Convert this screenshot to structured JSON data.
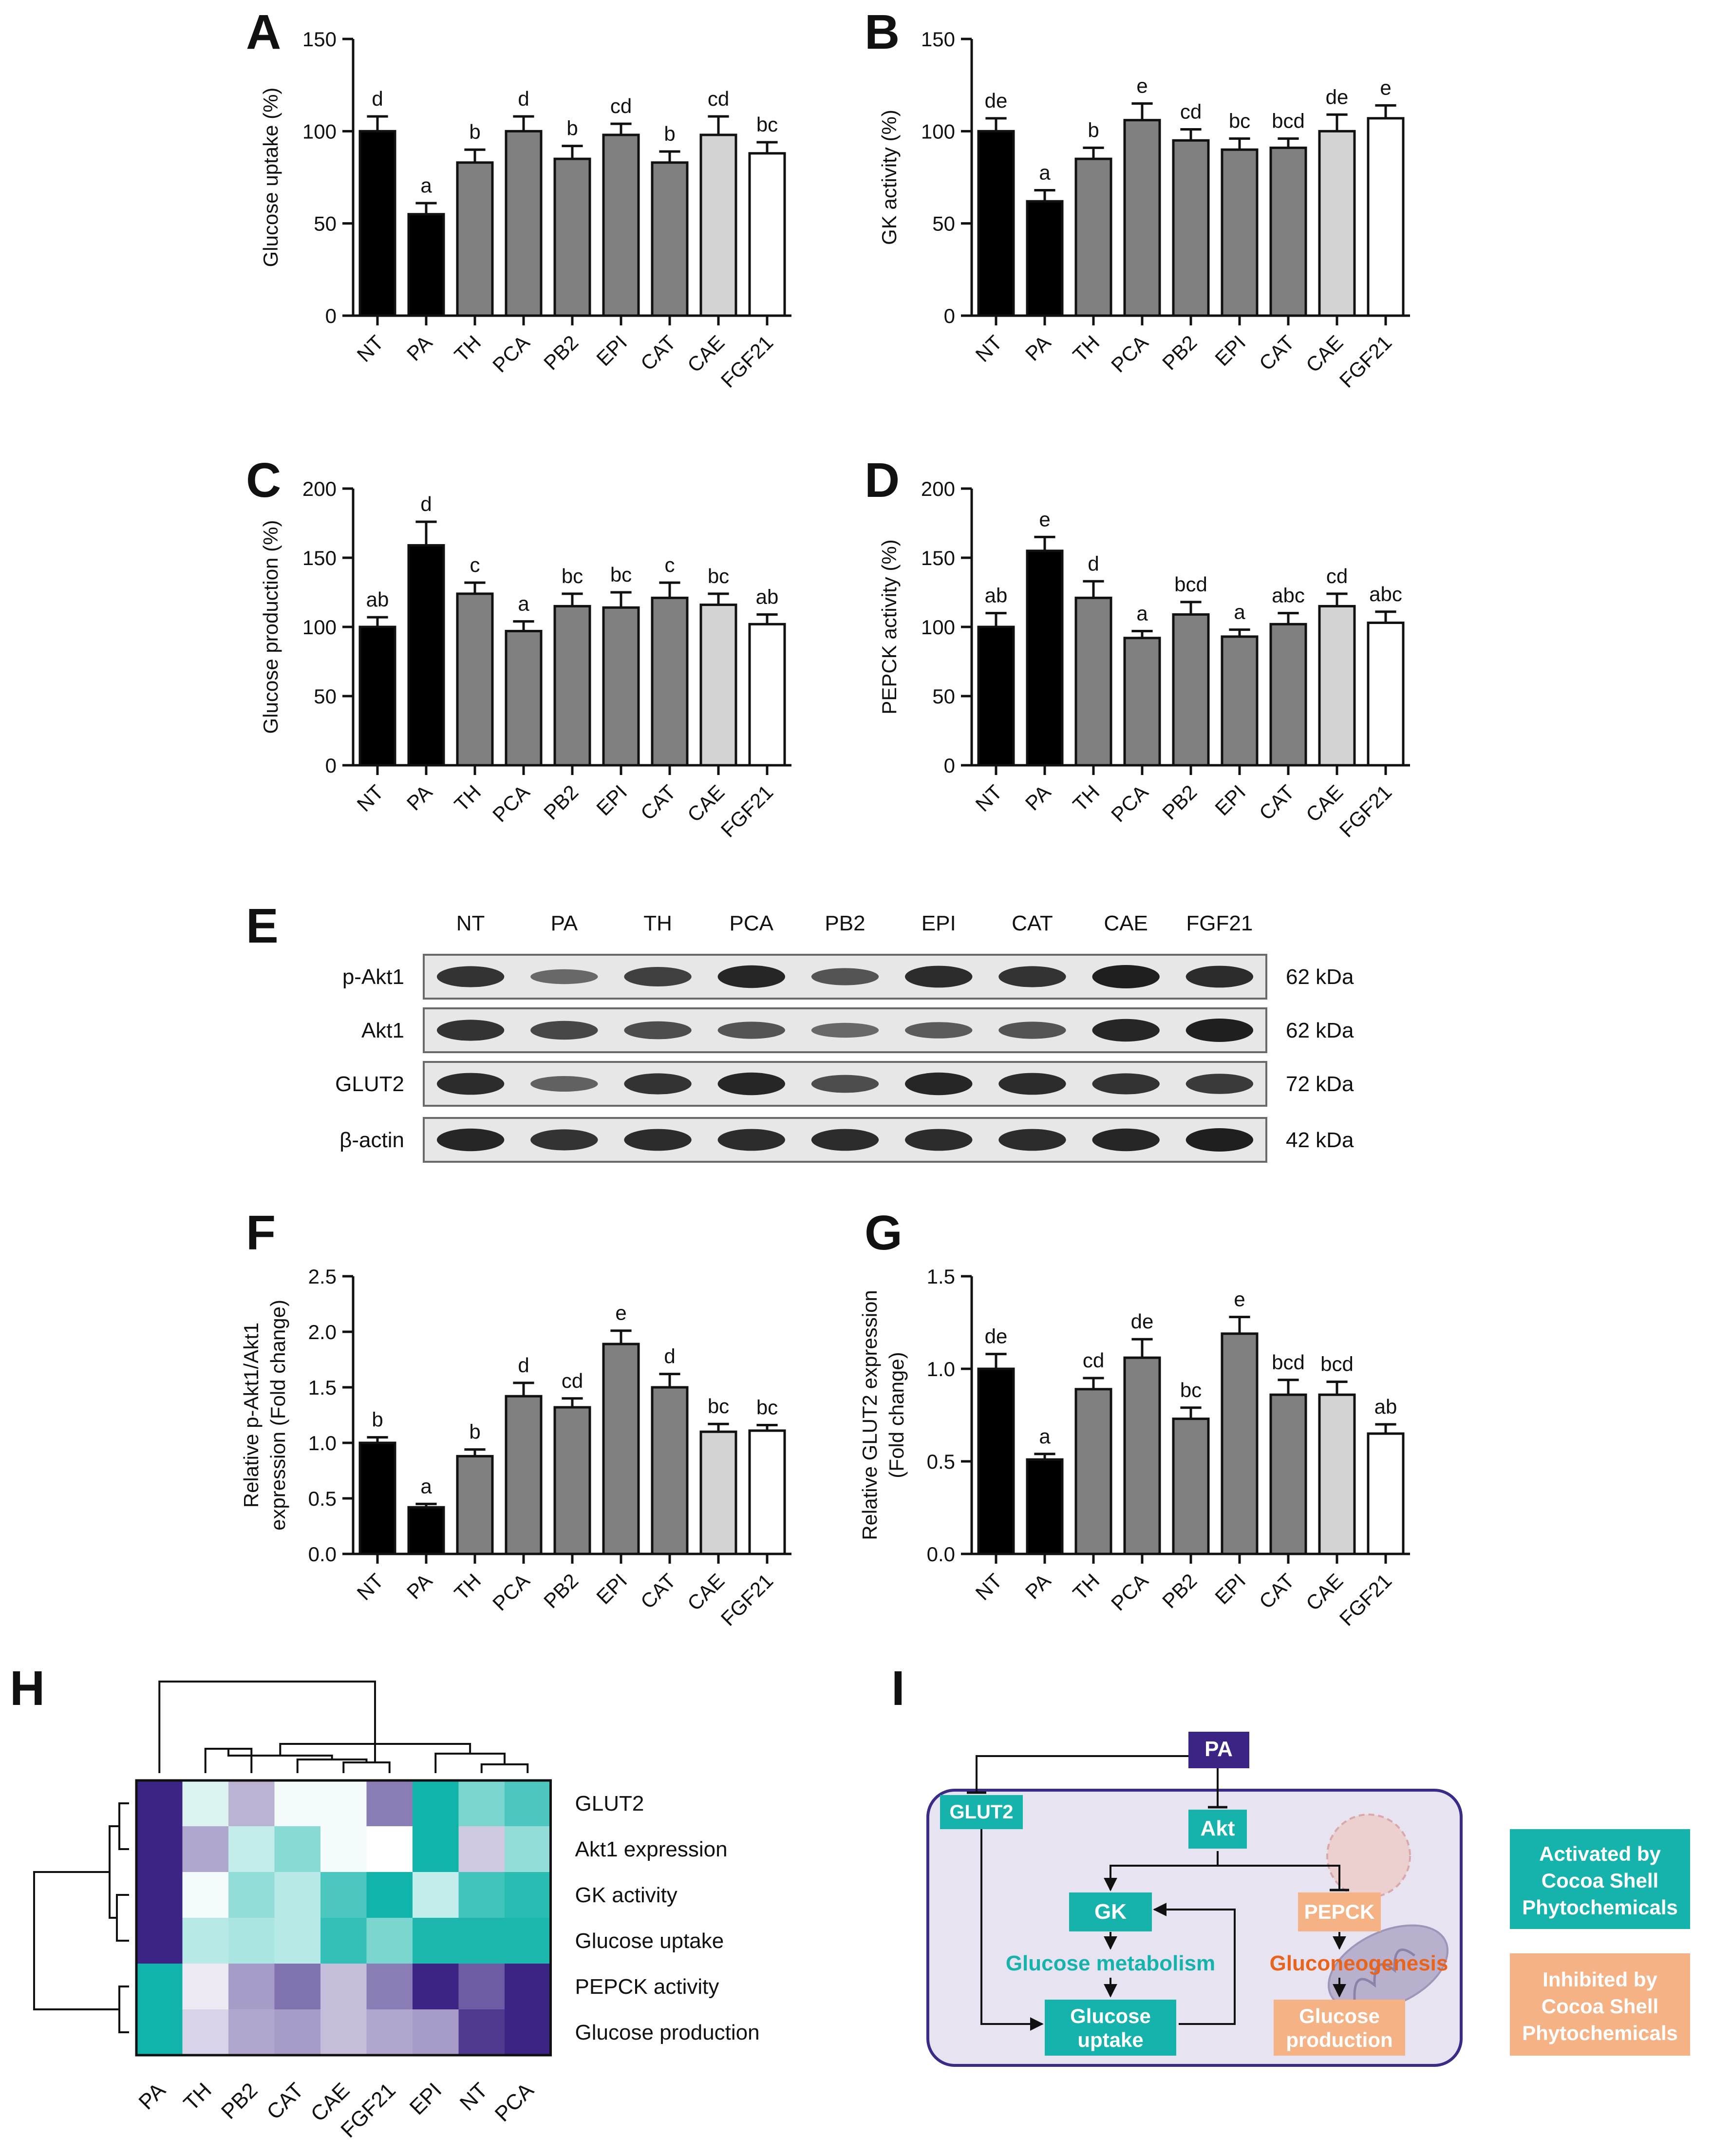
{
  "colors": {
    "black": "#000000",
    "dark_gray": "#808080",
    "light_gray": "#d3d3d3",
    "white": "#ffffff",
    "teal": "#16b3ad",
    "purple": "#3c2484",
    "orange": "#f4b285",
    "orange_text": "#e8641c",
    "cell_bg": "#e8e3f1",
    "cell_border": "#3b2a86"
  },
  "chart_data": [
    {
      "type": "bar",
      "panel": "A",
      "ylabel": "Glucose uptake (%)",
      "ylim": [
        0,
        150
      ],
      "yticks": [
        0,
        50,
        100,
        150
      ],
      "ytick_labels": [
        "0",
        "50",
        "100",
        "150"
      ],
      "categories": [
        "NT",
        "PA",
        "TH",
        "PCA",
        "PB2",
        "EPI",
        "CAT",
        "CAE",
        "FGF21"
      ],
      "values": [
        100,
        55,
        83,
        100,
        85,
        98,
        83,
        98,
        88
      ],
      "errors": [
        8,
        6,
        7,
        8,
        7,
        6,
        6,
        10,
        6
      ],
      "letters": [
        "d",
        "a",
        "b",
        "d",
        "b",
        "cd",
        "b",
        "cd",
        "bc"
      ],
      "fills": [
        "black",
        "black",
        "dark_gray",
        "dark_gray",
        "dark_gray",
        "dark_gray",
        "dark_gray",
        "light_gray",
        "white"
      ]
    },
    {
      "type": "bar",
      "panel": "B",
      "ylabel": "GK activity (%)",
      "ylim": [
        0,
        150
      ],
      "yticks": [
        0,
        50,
        100,
        150
      ],
      "ytick_labels": [
        "0",
        "50",
        "100",
        "150"
      ],
      "categories": [
        "NT",
        "PA",
        "TH",
        "PCA",
        "PB2",
        "EPI",
        "CAT",
        "CAE",
        "FGF21"
      ],
      "values": [
        100,
        62,
        85,
        106,
        95,
        90,
        91,
        100,
        107
      ],
      "errors": [
        7,
        6,
        6,
        9,
        6,
        6,
        5,
        9,
        7
      ],
      "letters": [
        "de",
        "a",
        "b",
        "e",
        "cd",
        "bc",
        "bcd",
        "de",
        "e"
      ],
      "fills": [
        "black",
        "black",
        "dark_gray",
        "dark_gray",
        "dark_gray",
        "dark_gray",
        "dark_gray",
        "light_gray",
        "white"
      ]
    },
    {
      "type": "bar",
      "panel": "C",
      "ylabel": "Glucose production (%)",
      "ylim": [
        0,
        200
      ],
      "yticks": [
        0,
        50,
        100,
        150,
        200
      ],
      "ytick_labels": [
        "0",
        "50",
        "100",
        "150",
        "200"
      ],
      "categories": [
        "NT",
        "PA",
        "TH",
        "PCA",
        "PB2",
        "EPI",
        "CAT",
        "CAE",
        "FGF21"
      ],
      "values": [
        100,
        159,
        124,
        97,
        115,
        114,
        121,
        116,
        102
      ],
      "errors": [
        7,
        17,
        8,
        7,
        9,
        11,
        11,
        8,
        7
      ],
      "letters": [
        "ab",
        "d",
        "c",
        "a",
        "bc",
        "bc",
        "c",
        "bc",
        "ab"
      ],
      "fills": [
        "black",
        "black",
        "dark_gray",
        "dark_gray",
        "dark_gray",
        "dark_gray",
        "dark_gray",
        "light_gray",
        "white"
      ]
    },
    {
      "type": "bar",
      "panel": "D",
      "ylabel": "PEPCK activity (%)",
      "ylim": [
        0,
        200
      ],
      "yticks": [
        0,
        50,
        100,
        150,
        200
      ],
      "ytick_labels": [
        "0",
        "50",
        "100",
        "150",
        "200"
      ],
      "categories": [
        "NT",
        "PA",
        "TH",
        "PCA",
        "PB2",
        "EPI",
        "CAT",
        "CAE",
        "FGF21"
      ],
      "values": [
        100,
        155,
        121,
        92,
        109,
        93,
        102,
        115,
        103
      ],
      "errors": [
        10,
        10,
        12,
        5,
        9,
        5,
        8,
        9,
        8
      ],
      "letters": [
        "ab",
        "e",
        "d",
        "a",
        "bcd",
        "a",
        "abc",
        "cd",
        "abc"
      ],
      "fills": [
        "black",
        "black",
        "dark_gray",
        "dark_gray",
        "dark_gray",
        "dark_gray",
        "dark_gray",
        "light_gray",
        "white"
      ]
    },
    {
      "type": "bar",
      "panel": "F",
      "ylabel": [
        "Relative p-Akt1/Akt1",
        "expression (Fold change)"
      ],
      "ylim": [
        0,
        2.5
      ],
      "yticks": [
        0,
        0.5,
        1,
        1.5,
        2,
        2.5
      ],
      "ytick_labels": [
        "0.0",
        "0.5",
        "1.0",
        "1.5",
        "2.0",
        "2.5"
      ],
      "categories": [
        "NT",
        "PA",
        "TH",
        "PCA",
        "PB2",
        "EPI",
        "CAT",
        "CAE",
        "FGF21"
      ],
      "values": [
        1.0,
        0.42,
        0.88,
        1.42,
        1.32,
        1.89,
        1.5,
        1.1,
        1.11
      ],
      "errors": [
        0.05,
        0.03,
        0.06,
        0.12,
        0.08,
        0.12,
        0.12,
        0.07,
        0.05
      ],
      "letters": [
        "b",
        "a",
        "b",
        "d",
        "cd",
        "e",
        "d",
        "bc",
        "bc"
      ],
      "fills": [
        "black",
        "black",
        "dark_gray",
        "dark_gray",
        "dark_gray",
        "dark_gray",
        "dark_gray",
        "light_gray",
        "white"
      ]
    },
    {
      "type": "bar",
      "panel": "G",
      "ylabel": [
        "Relative GLUT2 expression",
        "(Fold change)"
      ],
      "ylim": [
        0,
        1.5
      ],
      "yticks": [
        0,
        0.5,
        1,
        1.5
      ],
      "ytick_labels": [
        "0.0",
        "0.5",
        "1.0",
        "1.5"
      ],
      "categories": [
        "NT",
        "PA",
        "TH",
        "PCA",
        "PB2",
        "EPI",
        "CAT",
        "CAE",
        "FGF21"
      ],
      "values": [
        1.0,
        0.51,
        0.89,
        1.06,
        0.73,
        1.19,
        0.86,
        0.86,
        0.65
      ],
      "errors": [
        0.08,
        0.03,
        0.06,
        0.1,
        0.06,
        0.09,
        0.08,
        0.07,
        0.05
      ],
      "letters": [
        "de",
        "a",
        "cd",
        "de",
        "bc",
        "e",
        "bcd",
        "bcd",
        "ab"
      ],
      "fills": [
        "black",
        "black",
        "dark_gray",
        "dark_gray",
        "dark_gray",
        "dark_gray",
        "dark_gray",
        "light_gray",
        "white"
      ]
    },
    {
      "type": "heatmap",
      "panel": "H",
      "columns": [
        "PA",
        "TH",
        "PB2",
        "CAT",
        "CAE",
        "FGF21",
        "EPI",
        "NT",
        "PCA"
      ],
      "rows": [
        "GLUT2",
        "Akt1 expression",
        "GK activity",
        "Glucose uptake",
        "PEPCK activity",
        "Glucose production"
      ],
      "values": [
        [
          -1.0,
          0.15,
          -0.35,
          0.05,
          0.05,
          -0.6,
          1.0,
          0.55,
          0.75
        ],
        [
          -1.0,
          -0.4,
          0.25,
          0.5,
          0.05,
          0.0,
          1.0,
          -0.25,
          0.45
        ],
        [
          -1.0,
          0.05,
          0.45,
          0.3,
          0.75,
          1.0,
          0.25,
          0.8,
          0.9
        ],
        [
          -1.0,
          0.3,
          0.35,
          0.3,
          0.85,
          0.55,
          0.95,
          0.95,
          0.95
        ],
        [
          1.0,
          -0.1,
          -0.45,
          -0.65,
          -0.3,
          -0.6,
          -1.0,
          -0.75,
          -1.0
        ],
        [
          1.0,
          -0.2,
          -0.4,
          -0.45,
          -0.3,
          -0.4,
          -0.45,
          -0.9,
          -1.0
        ]
      ]
    }
  ],
  "panels": {
    "A": "A",
    "B": "B",
    "C": "C",
    "D": "D",
    "E": "E",
    "F": "F",
    "G": "G",
    "H": "H",
    "I": "I"
  },
  "blot": {
    "lanes": [
      "NT",
      "PA",
      "TH",
      "PCA",
      "PB2",
      "EPI",
      "CAT",
      "CAE",
      "FGF21"
    ],
    "rows": [
      {
        "label": "p-Akt1",
        "kda": "62 kDa",
        "intensity": [
          0.85,
          0.45,
          0.75,
          0.95,
          0.6,
          0.9,
          0.85,
          1.0,
          0.9
        ]
      },
      {
        "label": "Akt1",
        "kda": "62 kDa",
        "intensity": [
          0.85,
          0.7,
          0.65,
          0.6,
          0.45,
          0.55,
          0.6,
          0.95,
          1.0
        ]
      },
      {
        "label": "GLUT2",
        "kda": "72 kDa",
        "intensity": [
          0.9,
          0.5,
          0.85,
          0.95,
          0.65,
          0.95,
          0.9,
          0.85,
          0.8
        ]
      },
      {
        "label": "β-actin",
        "kda": "42 kDa",
        "intensity": [
          0.95,
          0.85,
          0.9,
          0.9,
          0.9,
          0.9,
          0.9,
          0.95,
          1.0
        ]
      }
    ]
  },
  "scheme": {
    "pa": "PA",
    "glut2": "GLUT2",
    "akt": "Akt",
    "gk": "GK",
    "pepck": "PEPCK",
    "glucose_metabolism": "Glucose metabolism",
    "gluconeogenesis": "Gluconeogenesis",
    "glucose_uptake": [
      "Glucose",
      "uptake"
    ],
    "glucose_production": [
      "Glucose",
      "production"
    ],
    "legend_activated": [
      "Activated by",
      "Cocoa Shell",
      "Phytochemicals"
    ],
    "legend_inhibited": [
      "Inhibited by",
      "Cocoa Shell",
      "Phytochemicals"
    ]
  }
}
